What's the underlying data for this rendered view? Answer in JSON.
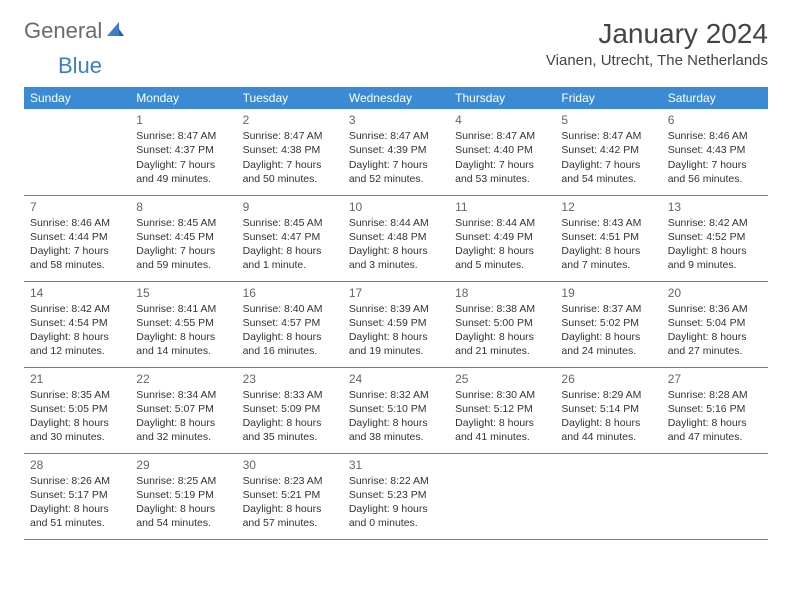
{
  "logo": {
    "general": "General",
    "blue": "Blue"
  },
  "title": "January 2024",
  "location": "Vianen, Utrecht, The Netherlands",
  "colors": {
    "header_bg": "#3b8bd4",
    "header_text": "#ffffff",
    "border": "#3b8bd4",
    "logo_gray": "#6b6b6b",
    "logo_blue": "#3b7fc4"
  },
  "day_headers": [
    "Sunday",
    "Monday",
    "Tuesday",
    "Wednesday",
    "Thursday",
    "Friday",
    "Saturday"
  ],
  "weeks": [
    [
      {
        "num": "",
        "lines": []
      },
      {
        "num": "1",
        "lines": [
          "Sunrise: 8:47 AM",
          "Sunset: 4:37 PM",
          "Daylight: 7 hours",
          "and 49 minutes."
        ]
      },
      {
        "num": "2",
        "lines": [
          "Sunrise: 8:47 AM",
          "Sunset: 4:38 PM",
          "Daylight: 7 hours",
          "and 50 minutes."
        ]
      },
      {
        "num": "3",
        "lines": [
          "Sunrise: 8:47 AM",
          "Sunset: 4:39 PM",
          "Daylight: 7 hours",
          "and 52 minutes."
        ]
      },
      {
        "num": "4",
        "lines": [
          "Sunrise: 8:47 AM",
          "Sunset: 4:40 PM",
          "Daylight: 7 hours",
          "and 53 minutes."
        ]
      },
      {
        "num": "5",
        "lines": [
          "Sunrise: 8:47 AM",
          "Sunset: 4:42 PM",
          "Daylight: 7 hours",
          "and 54 minutes."
        ]
      },
      {
        "num": "6",
        "lines": [
          "Sunrise: 8:46 AM",
          "Sunset: 4:43 PM",
          "Daylight: 7 hours",
          "and 56 minutes."
        ]
      }
    ],
    [
      {
        "num": "7",
        "lines": [
          "Sunrise: 8:46 AM",
          "Sunset: 4:44 PM",
          "Daylight: 7 hours",
          "and 58 minutes."
        ]
      },
      {
        "num": "8",
        "lines": [
          "Sunrise: 8:45 AM",
          "Sunset: 4:45 PM",
          "Daylight: 7 hours",
          "and 59 minutes."
        ]
      },
      {
        "num": "9",
        "lines": [
          "Sunrise: 8:45 AM",
          "Sunset: 4:47 PM",
          "Daylight: 8 hours",
          "and 1 minute."
        ]
      },
      {
        "num": "10",
        "lines": [
          "Sunrise: 8:44 AM",
          "Sunset: 4:48 PM",
          "Daylight: 8 hours",
          "and 3 minutes."
        ]
      },
      {
        "num": "11",
        "lines": [
          "Sunrise: 8:44 AM",
          "Sunset: 4:49 PM",
          "Daylight: 8 hours",
          "and 5 minutes."
        ]
      },
      {
        "num": "12",
        "lines": [
          "Sunrise: 8:43 AM",
          "Sunset: 4:51 PM",
          "Daylight: 8 hours",
          "and 7 minutes."
        ]
      },
      {
        "num": "13",
        "lines": [
          "Sunrise: 8:42 AM",
          "Sunset: 4:52 PM",
          "Daylight: 8 hours",
          "and 9 minutes."
        ]
      }
    ],
    [
      {
        "num": "14",
        "lines": [
          "Sunrise: 8:42 AM",
          "Sunset: 4:54 PM",
          "Daylight: 8 hours",
          "and 12 minutes."
        ]
      },
      {
        "num": "15",
        "lines": [
          "Sunrise: 8:41 AM",
          "Sunset: 4:55 PM",
          "Daylight: 8 hours",
          "and 14 minutes."
        ]
      },
      {
        "num": "16",
        "lines": [
          "Sunrise: 8:40 AM",
          "Sunset: 4:57 PM",
          "Daylight: 8 hours",
          "and 16 minutes."
        ]
      },
      {
        "num": "17",
        "lines": [
          "Sunrise: 8:39 AM",
          "Sunset: 4:59 PM",
          "Daylight: 8 hours",
          "and 19 minutes."
        ]
      },
      {
        "num": "18",
        "lines": [
          "Sunrise: 8:38 AM",
          "Sunset: 5:00 PM",
          "Daylight: 8 hours",
          "and 21 minutes."
        ]
      },
      {
        "num": "19",
        "lines": [
          "Sunrise: 8:37 AM",
          "Sunset: 5:02 PM",
          "Daylight: 8 hours",
          "and 24 minutes."
        ]
      },
      {
        "num": "20",
        "lines": [
          "Sunrise: 8:36 AM",
          "Sunset: 5:04 PM",
          "Daylight: 8 hours",
          "and 27 minutes."
        ]
      }
    ],
    [
      {
        "num": "21",
        "lines": [
          "Sunrise: 8:35 AM",
          "Sunset: 5:05 PM",
          "Daylight: 8 hours",
          "and 30 minutes."
        ]
      },
      {
        "num": "22",
        "lines": [
          "Sunrise: 8:34 AM",
          "Sunset: 5:07 PM",
          "Daylight: 8 hours",
          "and 32 minutes."
        ]
      },
      {
        "num": "23",
        "lines": [
          "Sunrise: 8:33 AM",
          "Sunset: 5:09 PM",
          "Daylight: 8 hours",
          "and 35 minutes."
        ]
      },
      {
        "num": "24",
        "lines": [
          "Sunrise: 8:32 AM",
          "Sunset: 5:10 PM",
          "Daylight: 8 hours",
          "and 38 minutes."
        ]
      },
      {
        "num": "25",
        "lines": [
          "Sunrise: 8:30 AM",
          "Sunset: 5:12 PM",
          "Daylight: 8 hours",
          "and 41 minutes."
        ]
      },
      {
        "num": "26",
        "lines": [
          "Sunrise: 8:29 AM",
          "Sunset: 5:14 PM",
          "Daylight: 8 hours",
          "and 44 minutes."
        ]
      },
      {
        "num": "27",
        "lines": [
          "Sunrise: 8:28 AM",
          "Sunset: 5:16 PM",
          "Daylight: 8 hours",
          "and 47 minutes."
        ]
      }
    ],
    [
      {
        "num": "28",
        "lines": [
          "Sunrise: 8:26 AM",
          "Sunset: 5:17 PM",
          "Daylight: 8 hours",
          "and 51 minutes."
        ]
      },
      {
        "num": "29",
        "lines": [
          "Sunrise: 8:25 AM",
          "Sunset: 5:19 PM",
          "Daylight: 8 hours",
          "and 54 minutes."
        ]
      },
      {
        "num": "30",
        "lines": [
          "Sunrise: 8:23 AM",
          "Sunset: 5:21 PM",
          "Daylight: 8 hours",
          "and 57 minutes."
        ]
      },
      {
        "num": "31",
        "lines": [
          "Sunrise: 8:22 AM",
          "Sunset: 5:23 PM",
          "Daylight: 9 hours",
          "and 0 minutes."
        ]
      },
      {
        "num": "",
        "lines": []
      },
      {
        "num": "",
        "lines": []
      },
      {
        "num": "",
        "lines": []
      }
    ]
  ]
}
